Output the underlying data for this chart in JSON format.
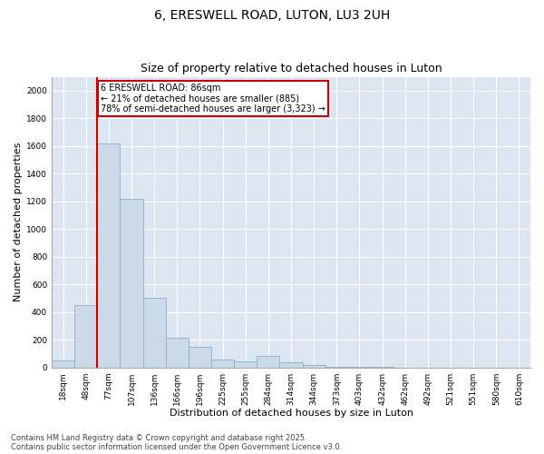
{
  "title1": "6, ERESWELL ROAD, LUTON, LU3 2UH",
  "title2": "Size of property relative to detached houses in Luton",
  "xlabel": "Distribution of detached houses by size in Luton",
  "ylabel": "Number of detached properties",
  "categories": [
    "18sqm",
    "48sqm",
    "77sqm",
    "107sqm",
    "136sqm",
    "166sqm",
    "196sqm",
    "225sqm",
    "255sqm",
    "284sqm",
    "314sqm",
    "344sqm",
    "373sqm",
    "403sqm",
    "432sqm",
    "462sqm",
    "492sqm",
    "521sqm",
    "551sqm",
    "580sqm",
    "610sqm"
  ],
  "values": [
    50,
    450,
    1620,
    1220,
    500,
    215,
    150,
    55,
    45,
    80,
    35,
    15,
    5,
    2,
    1,
    0,
    0,
    0,
    0,
    0,
    0
  ],
  "bar_color": "#ccd9e8",
  "bar_edge_color": "#8aafc8",
  "vline_color": "#cc0000",
  "annotation_text": "6 ERESWELL ROAD: 86sqm\n← 21% of detached houses are smaller (885)\n78% of semi-detached houses are larger (3,323) →",
  "annotation_box_color": "#ffffff",
  "annotation_box_edge": "#cc0000",
  "ylim": [
    0,
    2100
  ],
  "yticks": [
    0,
    200,
    400,
    600,
    800,
    1000,
    1200,
    1400,
    1600,
    1800,
    2000
  ],
  "background_color": "#dce6f0",
  "footer1": "Contains HM Land Registry data © Crown copyright and database right 2025.",
  "footer2": "Contains public sector information licensed under the Open Government Licence v3.0.",
  "title1_fontsize": 10,
  "title2_fontsize": 9,
  "tick_fontsize": 6.5,
  "label_fontsize": 8,
  "footer_fontsize": 6
}
